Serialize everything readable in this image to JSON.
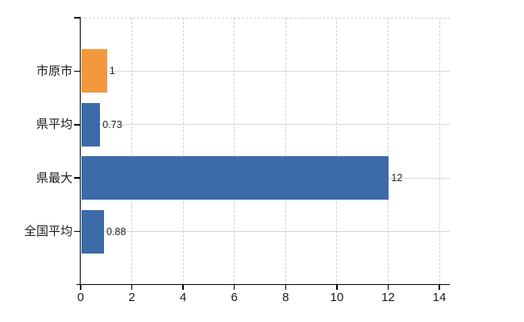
{
  "chart_data": {
    "type": "bar",
    "orientation": "horizontal",
    "title": "",
    "xlabel": "",
    "ylabel": "",
    "categories": [
      "市原市",
      "県平均",
      "県最大",
      "全国平均"
    ],
    "values": [
      1,
      0.73,
      12,
      0.88
    ],
    "value_labels": [
      "1",
      "0.73",
      "12",
      "0.88"
    ],
    "bar_colors": [
      "#F1993C",
      "#3C6BA9",
      "#3C6BA9",
      "#3C6BA9"
    ],
    "x_tick_values": [
      0,
      2,
      4,
      6,
      8,
      10,
      12,
      14
    ],
    "x_tick_labels": [
      "0",
      "2",
      "4",
      "6",
      "8",
      "10",
      "12",
      "14"
    ],
    "xlim": [
      0,
      14
    ],
    "grid": "on",
    "grid_vertical_style": "dashed",
    "grid_horizontal_style": "solid",
    "legend_position": "none"
  },
  "colors": {
    "background": "#FFFFFF",
    "axis": "#000000",
    "grid_vertical": "#D6CFCA",
    "grid_horizontal": "#D5DACE",
    "category_text": "#1A1A1A",
    "value_text": "#222222",
    "tick_text": "#1A1A1A",
    "bar_orange": "#F1993C",
    "bar_blue": "#3C6BA9"
  }
}
